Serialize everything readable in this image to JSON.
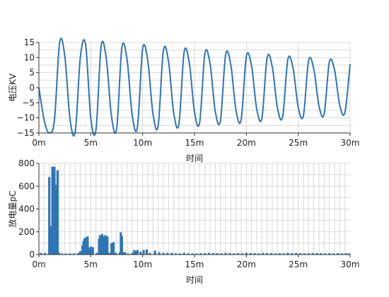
{
  "chart_data": [
    {
      "type": "line",
      "xlabel": "时间",
      "ylabel": "电压KV",
      "xlim": [
        0,
        30
      ],
      "ylim": [
        -15,
        15
      ],
      "x_tick_values": [
        0,
        5,
        10,
        15,
        20,
        25,
        30
      ],
      "x_tick_labels": [
        "0m",
        "5m",
        "10m",
        "15m",
        "20m",
        "25m",
        "30m"
      ],
      "y_tick_values": [
        15,
        10,
        5,
        0,
        -5,
        -10,
        -15
      ],
      "y_tick_labels": [
        "15",
        "10",
        "5",
        "0",
        "−5",
        "−10",
        "−15"
      ],
      "grid": true,
      "line_color": "#2e75b6",
      "series": [
        {
          "x": [
            0,
            0.5,
            1.0,
            1.5,
            2.0,
            2.5,
            3.0,
            3.5,
            4.0,
            4.5,
            5.0,
            5.5,
            6.0,
            6.5,
            7.0,
            7.5,
            8.0,
            8.5,
            9.0,
            9.5,
            10.0,
            10.5,
            11.0,
            11.5,
            12.0,
            12.5,
            13.0,
            13.5,
            14.0,
            14.5,
            15.0,
            15.5,
            16.0,
            16.5,
            17.0,
            17.5,
            18.0,
            18.5,
            19.0,
            19.5,
            20.0,
            20.5,
            21.0,
            21.5,
            22.0,
            22.5,
            23.0,
            23.5,
            24.0,
            24.5,
            25.0,
            25.5,
            26.0,
            26.5,
            27.0,
            27.5,
            28.0,
            28.5,
            29.0,
            29.5,
            30.0
          ],
          "values": [
            0,
            -10.6,
            -15.0,
            -10.6,
            15.0,
            10.4,
            -10.4,
            -14.6,
            10.2,
            14.4,
            -10.0,
            -14.0,
            13.8,
            9.6,
            -9.6,
            -13.5,
            13.3,
            9.3,
            -9.2,
            -13.0,
            12.8,
            8.9,
            -8.8,
            -12.5,
            12.3,
            8.6,
            -8.5,
            -12.0,
            11.8,
            8.2,
            -8.1,
            -11.5,
            11.3,
            7.9,
            -7.8,
            -11.0,
            10.9,
            7.6,
            -7.5,
            -10.6,
            10.4,
            7.2,
            -7.1,
            -10.1,
            9.9,
            6.9,
            -6.8,
            -9.6,
            9.4,
            6.5,
            -6.5,
            -9.2,
            9.0,
            6.2,
            -6.1,
            -8.7,
            8.5,
            5.9,
            -5.8,
            -8.2,
            7.8
          ]
        }
      ]
    },
    {
      "type": "bar",
      "xlabel": "时间",
      "ylabel": "放电量pC",
      "xlim": [
        0,
        30
      ],
      "ylim": [
        0,
        800
      ],
      "x_tick_values": [
        0,
        5,
        10,
        15,
        20,
        25,
        30
      ],
      "x_tick_labels": [
        "0m",
        "5m",
        "10m",
        "15m",
        "20m",
        "25m",
        "30m"
      ],
      "y_tick_values": [
        800,
        600,
        400,
        200,
        0
      ],
      "y_tick_labels": [
        "800",
        "600",
        "400",
        "200",
        "0"
      ],
      "grid": true,
      "bar_color": "#2e75b6",
      "series": [
        {
          "x": [
            0.2,
            0.6,
            1.0,
            1.1,
            1.2,
            1.3,
            1.4,
            1.5,
            1.6,
            1.7,
            1.8,
            1.9,
            2.2,
            2.6,
            3.0,
            3.4,
            3.8,
            4.0,
            4.2,
            4.3,
            4.4,
            4.5,
            4.6,
            4.7,
            4.8,
            5.0,
            5.2,
            5.6,
            5.8,
            5.9,
            6.0,
            6.1,
            6.2,
            6.3,
            6.4,
            6.5,
            6.6,
            6.8,
            7.0,
            7.2,
            7.4,
            7.8,
            7.9,
            8.0,
            8.1,
            8.3,
            8.6,
            9.0,
            9.2,
            9.3,
            9.5,
            9.8,
            10.1,
            10.4,
            10.7,
            11.2,
            11.6,
            12.0,
            12.4,
            12.8,
            13.2,
            13.6,
            14.0,
            14.4,
            14.8,
            15.2,
            15.6,
            16.0,
            16.4,
            16.8,
            17.2,
            17.6,
            18.0,
            18.4,
            18.8,
            19.2,
            19.6,
            20.0,
            20.4,
            20.8,
            21.2,
            21.6,
            22.0,
            22.4,
            22.8,
            23.2,
            23.6,
            24.0,
            24.4,
            24.8,
            25.2,
            25.6,
            26.0,
            26.4,
            26.8,
            27.2,
            27.6,
            28.0,
            28.4,
            28.8,
            29.2,
            29.6,
            29.9
          ],
          "values": [
            15,
            15,
            680,
            220,
            250,
            770,
            770,
            770,
            610,
            610,
            740,
            20,
            10,
            10,
            10,
            10,
            15,
            30,
            80,
            120,
            140,
            150,
            150,
            160,
            60,
            70,
            65,
            15,
            140,
            170,
            150,
            180,
            160,
            120,
            170,
            150,
            160,
            15,
            100,
            110,
            15,
            20,
            195,
            160,
            20,
            20,
            10,
            15,
            40,
            30,
            40,
            25,
            40,
            45,
            15,
            35,
            20,
            15,
            15,
            15,
            10,
            10,
            15,
            10,
            10,
            10,
            12,
            12,
            15,
            12,
            12,
            10,
            15,
            12,
            10,
            12,
            10,
            15,
            12,
            12,
            10,
            15,
            12,
            12,
            10,
            12,
            10,
            15,
            12,
            15,
            12,
            10,
            12,
            12,
            12,
            12,
            10,
            12,
            10,
            12,
            10,
            12,
            10
          ]
        }
      ]
    }
  ]
}
